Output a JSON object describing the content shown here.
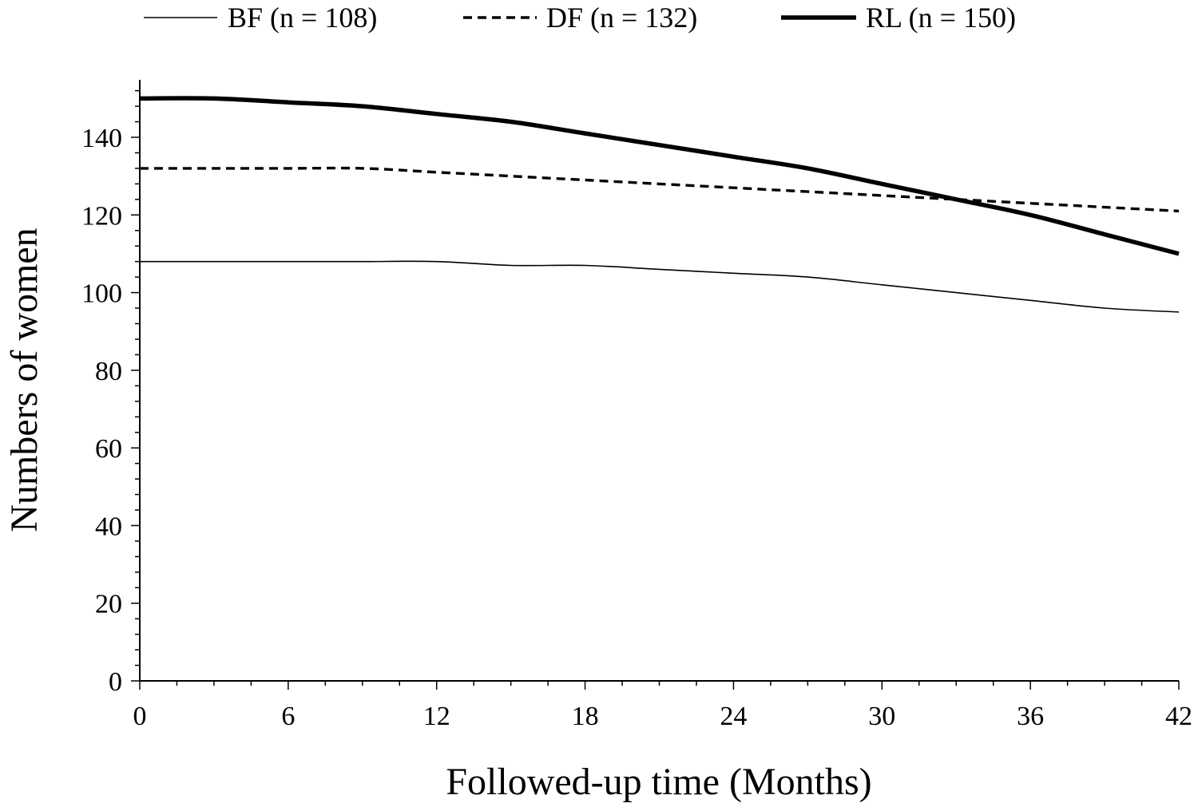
{
  "chart_data": {
    "type": "line",
    "xlabel": "Followed-up time (Months)",
    "ylabel": "Numbers of women",
    "xlim": [
      0,
      42
    ],
    "ylim": [
      0,
      150
    ],
    "xticks": [
      0,
      6,
      12,
      18,
      24,
      30,
      36,
      42
    ],
    "yticks": [
      0,
      20,
      40,
      60,
      80,
      100,
      120,
      140
    ],
    "legend_position": "top",
    "grid": false,
    "series": [
      {
        "name": "BF (n = 108)",
        "style": "thin-solid",
        "x": [
          0,
          3,
          6,
          9,
          12,
          15,
          18,
          21,
          24,
          27,
          30,
          33,
          36,
          39,
          42
        ],
        "y": [
          108,
          108,
          108,
          108,
          108,
          107,
          107,
          106,
          105,
          104,
          102,
          100,
          98,
          96,
          95
        ]
      },
      {
        "name": "DF (n = 132)",
        "style": "dashed",
        "x": [
          0,
          3,
          6,
          9,
          12,
          15,
          18,
          21,
          24,
          27,
          30,
          33,
          36,
          39,
          42
        ],
        "y": [
          132,
          132,
          132,
          132,
          131,
          130,
          129,
          128,
          127,
          126,
          125,
          124,
          123,
          122,
          121
        ]
      },
      {
        "name": "RL (n = 150)",
        "style": "thick-solid",
        "x": [
          0,
          3,
          6,
          9,
          12,
          15,
          18,
          21,
          24,
          27,
          30,
          33,
          36,
          39,
          42
        ],
        "y": [
          150,
          150,
          149,
          148,
          146,
          144,
          141,
          138,
          135,
          132,
          128,
          124,
          120,
          115,
          110
        ]
      }
    ]
  }
}
